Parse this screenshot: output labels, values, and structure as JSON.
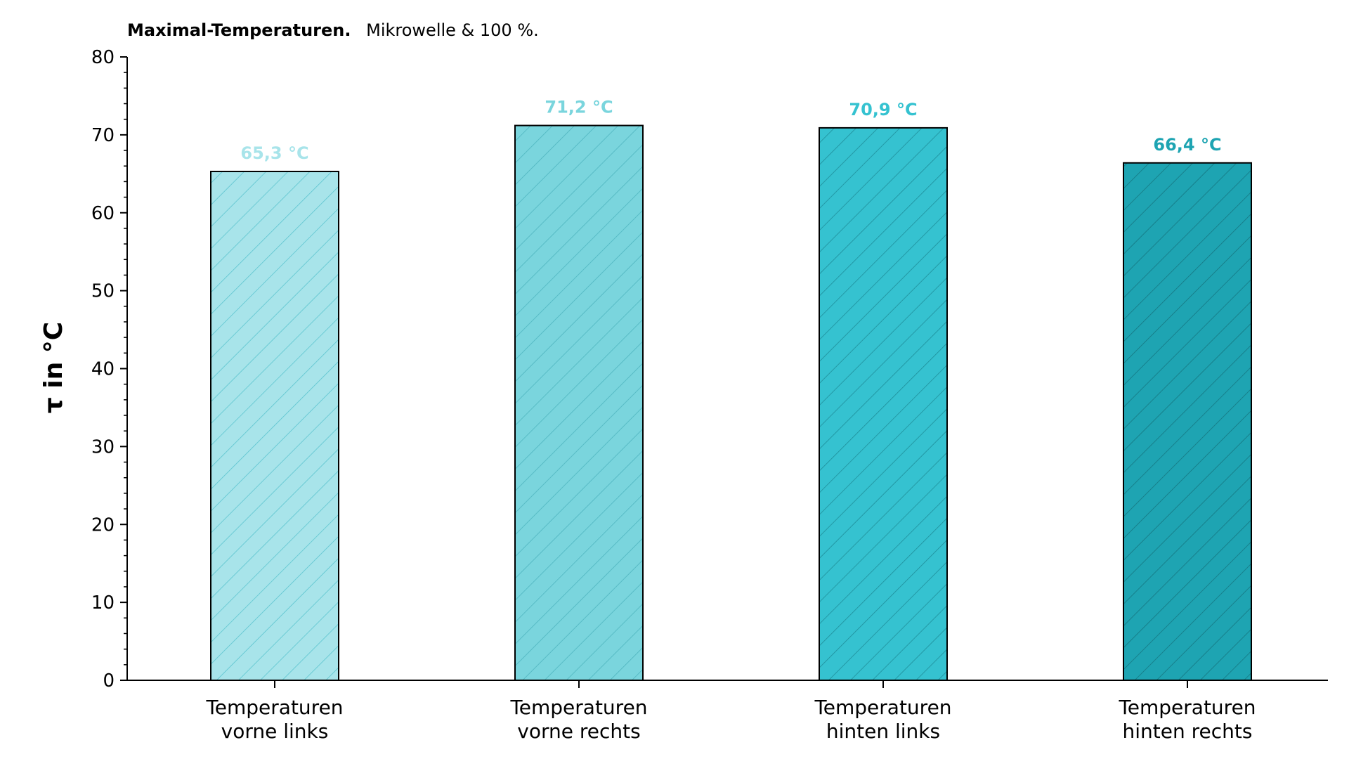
{
  "chart_data": {
    "type": "bar",
    "title": "Maximal-Temperaturen.",
    "subtitle": "Mikrowelle & 100 %.",
    "ylabel": "τ in °C",
    "xlabel": "",
    "ylim": [
      0,
      80
    ],
    "yticks": [
      "0",
      "10",
      "20",
      "30",
      "40",
      "50",
      "60",
      "70",
      "80"
    ],
    "grid": false,
    "categories": [
      [
        "Temperaturen",
        "vorne links"
      ],
      [
        "Temperaturen",
        "vorne rechts"
      ],
      [
        "Temperaturen",
        "hinten links"
      ],
      [
        "Temperaturen",
        "hinten rechts"
      ]
    ],
    "values": [
      65.3,
      71.2,
      70.9,
      66.4
    ],
    "data_labels": [
      "65,3 °C",
      "71,2 °C",
      "70,9 °C",
      "66,4 °C"
    ],
    "bar_colors": [
      "#a8e4ea",
      "#7ad5dd",
      "#35c2d0",
      "#1ea4b2"
    ],
    "label_colors": [
      "#a8e4ea",
      "#7ad5dd",
      "#35c2d0",
      "#1ea4b2"
    ],
    "hatch_colors": [
      "#5cc4cf",
      "#4fb5c0",
      "#1f8f9b",
      "#157782"
    ],
    "hatch": "diagonal"
  }
}
